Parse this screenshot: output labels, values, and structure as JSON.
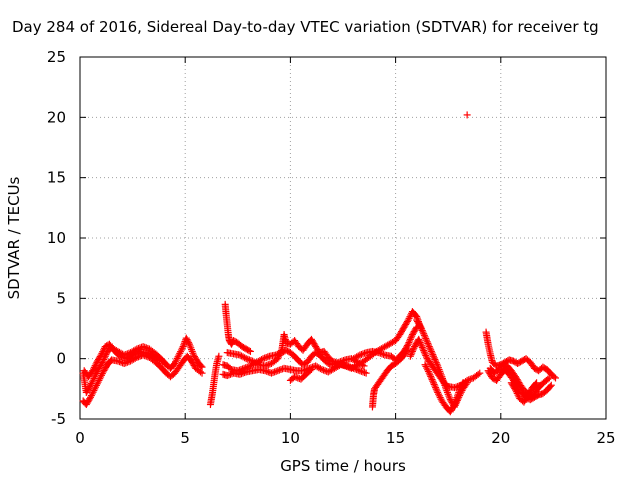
{
  "chart_data": {
    "type": "scatter",
    "title": "Day 284 of 2016, Sidereal Day-to-day VTEC variation (SDTVAR) for receiver tg",
    "xlabel": "GPS time / hours",
    "ylabel": "SDTVAR / TECUs",
    "xlim": [
      0,
      25
    ],
    "ylim": [
      -5,
      25
    ],
    "xticks": [
      0,
      5,
      10,
      15,
      20,
      25
    ],
    "yticks": [
      -5,
      0,
      5,
      10,
      15,
      20,
      25
    ],
    "grid": true,
    "marker": "plus",
    "color": "#ff0000",
    "segments": [
      [
        [
          0.15,
          -1.2
        ],
        [
          0.3,
          -2.8
        ],
        [
          0.5,
          -2.2
        ],
        [
          0.7,
          -1.5
        ],
        [
          0.9,
          -0.8
        ],
        [
          1.1,
          -0.2
        ],
        [
          1.3,
          0.6
        ],
        [
          1.5,
          0.9
        ],
        [
          1.8,
          0.6
        ],
        [
          2.1,
          0.3
        ],
        [
          2.4,
          0.5
        ],
        [
          2.7,
          0.8
        ],
        [
          3.0,
          1.0
        ],
        [
          3.3,
          0.8
        ],
        [
          3.6,
          0.4
        ],
        [
          3.9,
          -0.1
        ],
        [
          4.1,
          -0.5
        ],
        [
          4.3,
          -0.8
        ],
        [
          4.5,
          -0.4
        ],
        [
          4.7,
          0.3
        ],
        [
          4.9,
          1.0
        ],
        [
          5.05,
          1.7
        ],
        [
          5.2,
          1.2
        ],
        [
          5.4,
          0.3
        ],
        [
          5.6,
          -0.3
        ],
        [
          5.8,
          -0.7
        ]
      ],
      [
        [
          0.15,
          -3.5
        ],
        [
          0.3,
          -3.8
        ],
        [
          0.5,
          -3.2
        ],
        [
          0.7,
          -2.5
        ],
        [
          0.9,
          -1.8
        ],
        [
          1.1,
          -1.1
        ],
        [
          1.3,
          -0.5
        ],
        [
          1.5,
          -0.1
        ],
        [
          1.8,
          -0.2
        ],
        [
          2.1,
          -0.4
        ],
        [
          2.4,
          -0.2
        ],
        [
          2.7,
          0.1
        ],
        [
          3.0,
          0.3
        ],
        [
          3.3,
          0.1
        ],
        [
          3.6,
          -0.3
        ],
        [
          3.9,
          -0.8
        ],
        [
          4.1,
          -1.2
        ],
        [
          4.3,
          -1.5
        ],
        [
          4.5,
          -1.2
        ],
        [
          4.7,
          -0.7
        ],
        [
          4.9,
          -0.2
        ],
        [
          5.1,
          0.2
        ],
        [
          5.3,
          -0.2
        ],
        [
          5.5,
          -0.8
        ],
        [
          5.8,
          -1.2
        ]
      ],
      [
        [
          0.2,
          -1.0
        ],
        [
          0.4,
          -1.5
        ],
        [
          0.6,
          -1.0
        ],
        [
          0.8,
          -0.3
        ],
        [
          1.0,
          0.3
        ],
        [
          1.2,
          1.0
        ],
        [
          1.4,
          1.2
        ],
        [
          1.6,
          0.7
        ],
        [
          1.9,
          0.2
        ],
        [
          2.2,
          0.0
        ],
        [
          2.5,
          0.3
        ],
        [
          2.8,
          0.6
        ],
        [
          3.1,
          0.5
        ],
        [
          3.4,
          0.3
        ],
        [
          3.7,
          0.0
        ],
        [
          4.0,
          -0.3
        ]
      ],
      [
        [
          6.2,
          -3.8
        ],
        [
          6.3,
          -2.8
        ],
        [
          6.4,
          -1.5
        ],
        [
          6.5,
          -0.4
        ],
        [
          6.6,
          0.2
        ]
      ],
      [
        [
          6.9,
          4.5
        ],
        [
          6.95,
          3.6
        ],
        [
          7.0,
          2.8
        ],
        [
          7.05,
          2.0
        ],
        [
          7.1,
          1.5
        ],
        [
          7.2,
          1.2
        ],
        [
          7.3,
          1.5
        ],
        [
          7.5,
          1.3
        ],
        [
          7.7,
          1.0
        ],
        [
          7.9,
          0.8
        ],
        [
          8.1,
          0.6
        ]
      ],
      [
        [
          6.8,
          -0.5
        ],
        [
          7.0,
          -0.6
        ],
        [
          7.2,
          -0.9
        ],
        [
          7.5,
          -1.0
        ],
        [
          7.8,
          -0.8
        ],
        [
          8.1,
          -0.6
        ],
        [
          8.4,
          -0.3
        ],
        [
          8.7,
          0.0
        ],
        [
          9.0,
          0.2
        ],
        [
          9.3,
          0.3
        ],
        [
          9.6,
          0.5
        ],
        [
          9.8,
          0.7
        ],
        [
          10.0,
          0.5
        ],
        [
          10.2,
          0.2
        ],
        [
          10.4,
          -0.2
        ],
        [
          10.6,
          -0.5
        ],
        [
          10.8,
          -0.3
        ],
        [
          11.0,
          0.2
        ],
        [
          11.2,
          0.5
        ],
        [
          11.4,
          0.3
        ],
        [
          11.6,
          -0.1
        ],
        [
          11.8,
          -0.4
        ],
        [
          12.0,
          -0.5
        ],
        [
          12.3,
          -0.3
        ],
        [
          12.6,
          -0.1
        ],
        [
          12.9,
          0.0
        ],
        [
          13.2,
          -0.3
        ],
        [
          13.5,
          -0.6
        ]
      ],
      [
        [
          6.8,
          -1.3
        ],
        [
          7.0,
          -1.4
        ],
        [
          7.3,
          -1.2
        ],
        [
          7.6,
          -1.3
        ],
        [
          7.9,
          -1.1
        ],
        [
          8.2,
          -1.0
        ],
        [
          8.5,
          -0.9
        ],
        [
          8.8,
          -1.0
        ],
        [
          9.1,
          -1.2
        ],
        [
          9.4,
          -1.0
        ],
        [
          9.7,
          -0.8
        ],
        [
          10.0,
          -0.9
        ],
        [
          10.3,
          -1.0
        ],
        [
          10.6,
          -1.0
        ],
        [
          10.9,
          -0.8
        ],
        [
          11.2,
          -0.6
        ],
        [
          11.5,
          -0.9
        ],
        [
          11.8,
          -1.1
        ],
        [
          12.1,
          -0.8
        ],
        [
          12.4,
          -0.5
        ],
        [
          12.7,
          -0.6
        ],
        [
          13.0,
          -0.8
        ],
        [
          13.3,
          -1.0
        ],
        [
          13.6,
          -1.2
        ]
      ],
      [
        [
          7.0,
          0.5
        ],
        [
          7.3,
          0.4
        ],
        [
          7.6,
          0.3
        ],
        [
          7.9,
          0.0
        ],
        [
          8.2,
          -0.2
        ],
        [
          8.5,
          -0.5
        ],
        [
          8.8,
          -0.6
        ],
        [
          9.1,
          -0.4
        ],
        [
          9.4,
          0.0
        ],
        [
          9.6,
          0.8
        ],
        [
          9.7,
          2.0
        ],
        [
          9.8,
          1.3
        ],
        [
          10.0,
          1.2
        ],
        [
          10.2,
          1.5
        ],
        [
          10.4,
          1.0
        ],
        [
          10.6,
          0.7
        ],
        [
          10.8,
          1.2
        ],
        [
          11.0,
          1.6
        ],
        [
          11.2,
          1.0
        ],
        [
          11.4,
          0.5
        ],
        [
          11.6,
          0.6
        ],
        [
          11.8,
          0.1
        ],
        [
          12.0,
          -0.2
        ],
        [
          12.3,
          -0.4
        ],
        [
          12.6,
          -0.6
        ],
        [
          12.9,
          -0.8
        ],
        [
          13.2,
          -0.5
        ],
        [
          13.5,
          -0.2
        ],
        [
          13.8,
          0.2
        ],
        [
          14.1,
          0.6
        ],
        [
          14.4,
          0.9
        ],
        [
          14.7,
          1.2
        ],
        [
          15.0,
          1.5
        ],
        [
          15.2,
          2.0
        ],
        [
          15.4,
          2.6
        ],
        [
          15.6,
          3.2
        ],
        [
          15.8,
          3.9
        ],
        [
          16.0,
          3.5
        ],
        [
          16.2,
          2.5
        ]
      ],
      [
        [
          10.0,
          -1.8
        ],
        [
          10.2,
          -1.5
        ],
        [
          10.5,
          -1.7
        ],
        [
          10.8,
          -1.2
        ],
        [
          11.0,
          -0.9
        ]
      ],
      [
        [
          13.0,
          0.0
        ],
        [
          13.3,
          0.3
        ],
        [
          13.6,
          0.5
        ],
        [
          13.9,
          0.6
        ],
        [
          14.2,
          0.5
        ],
        [
          14.5,
          0.3
        ],
        [
          14.8,
          0.2
        ],
        [
          15.0,
          -0.1
        ],
        [
          15.2,
          0.2
        ],
        [
          15.4,
          0.6
        ],
        [
          15.6,
          1.2
        ],
        [
          15.8,
          2.0
        ],
        [
          16.0,
          2.6
        ]
      ],
      [
        [
          13.9,
          -4.0
        ],
        [
          13.95,
          -3.0
        ],
        [
          14.0,
          -2.5
        ],
        [
          14.2,
          -2.0
        ],
        [
          14.4,
          -1.5
        ],
        [
          14.6,
          -1.0
        ],
        [
          14.8,
          -0.6
        ],
        [
          15.0,
          -0.4
        ],
        [
          15.2,
          -0.1
        ],
        [
          15.4,
          0.3
        ],
        [
          15.6,
          0.8
        ]
      ],
      [
        [
          15.7,
          0.2
        ],
        [
          15.9,
          1.0
        ],
        [
          16.1,
          1.6
        ],
        [
          16.3,
          0.8
        ],
        [
          16.5,
          0.0
        ],
        [
          16.7,
          -0.5
        ],
        [
          16.9,
          -1.0
        ],
        [
          17.1,
          -1.5
        ],
        [
          17.3,
          -2.0
        ],
        [
          17.5,
          -2.3
        ],
        [
          17.8,
          -2.4
        ],
        [
          18.1,
          -2.2
        ],
        [
          18.4,
          -1.8
        ],
        [
          18.7,
          -1.6
        ],
        [
          19.0,
          -1.2
        ]
      ],
      [
        [
          16.0,
          3.2
        ],
        [
          16.2,
          2.6
        ],
        [
          16.4,
          1.8
        ],
        [
          16.6,
          1.0
        ],
        [
          16.8,
          0.2
        ],
        [
          17.0,
          -0.6
        ],
        [
          17.2,
          -1.5
        ],
        [
          17.4,
          -2.5
        ],
        [
          17.6,
          -3.4
        ],
        [
          17.8,
          -4.0
        ],
        [
          18.0,
          -3.2
        ],
        [
          18.2,
          -2.5
        ],
        [
          18.4,
          -2.0
        ]
      ],
      [
        [
          16.4,
          -0.5
        ],
        [
          16.6,
          -1.2
        ],
        [
          16.8,
          -2.0
        ],
        [
          17.0,
          -2.8
        ],
        [
          17.2,
          -3.5
        ],
        [
          17.4,
          -4.0
        ],
        [
          17.6,
          -4.4
        ],
        [
          17.8,
          -3.8
        ],
        [
          18.0,
          -2.8
        ],
        [
          18.2,
          -2.0
        ]
      ],
      [
        [
          18.4,
          20.2
        ]
      ],
      [
        [
          19.3,
          2.2
        ],
        [
          19.4,
          1.2
        ],
        [
          19.5,
          0.4
        ],
        [
          19.6,
          -0.3
        ],
        [
          19.8,
          -0.6
        ],
        [
          20.0,
          -0.5
        ],
        [
          20.2,
          -0.3
        ],
        [
          20.4,
          -0.1
        ],
        [
          20.6,
          -0.2
        ],
        [
          20.8,
          -0.4
        ],
        [
          21.0,
          -0.2
        ],
        [
          21.2,
          0.0
        ],
        [
          21.4,
          -0.3
        ],
        [
          21.6,
          -0.8
        ],
        [
          21.8,
          -1.0
        ],
        [
          22.0,
          -0.7
        ],
        [
          22.2,
          -0.9
        ],
        [
          22.4,
          -1.3
        ],
        [
          22.6,
          -1.6
        ]
      ],
      [
        [
          19.4,
          -1.0
        ],
        [
          19.6,
          -1.6
        ],
        [
          19.8,
          -1.8
        ],
        [
          20.0,
          -1.3
        ],
        [
          20.2,
          -0.9
        ],
        [
          20.4,
          -1.3
        ],
        [
          20.6,
          -1.8
        ],
        [
          20.8,
          -2.3
        ],
        [
          21.0,
          -2.8
        ],
        [
          21.2,
          -3.2
        ],
        [
          21.4,
          -3.4
        ],
        [
          21.6,
          -3.2
        ],
        [
          21.8,
          -3.0
        ],
        [
          22.0,
          -2.9
        ],
        [
          22.2,
          -2.6
        ],
        [
          22.4,
          -2.2
        ]
      ],
      [
        [
          19.5,
          -0.8
        ],
        [
          19.7,
          -1.2
        ],
        [
          19.9,
          -0.9
        ],
        [
          20.1,
          -0.6
        ],
        [
          20.3,
          -0.6
        ],
        [
          20.5,
          -1.0
        ],
        [
          20.7,
          -1.5
        ],
        [
          20.9,
          -2.1
        ],
        [
          21.1,
          -2.6
        ],
        [
          21.3,
          -2.9
        ],
        [
          21.5,
          -3.2
        ],
        [
          21.7,
          -2.6
        ],
        [
          21.9,
          -2.2
        ],
        [
          22.1,
          -1.9
        ],
        [
          22.3,
          -1.6
        ]
      ],
      [
        [
          20.5,
          -2.0
        ],
        [
          20.7,
          -2.6
        ],
        [
          20.9,
          -3.3
        ],
        [
          21.1,
          -3.6
        ],
        [
          21.3,
          -3.0
        ],
        [
          21.5,
          -2.4
        ],
        [
          21.7,
          -2.0
        ]
      ]
    ]
  }
}
